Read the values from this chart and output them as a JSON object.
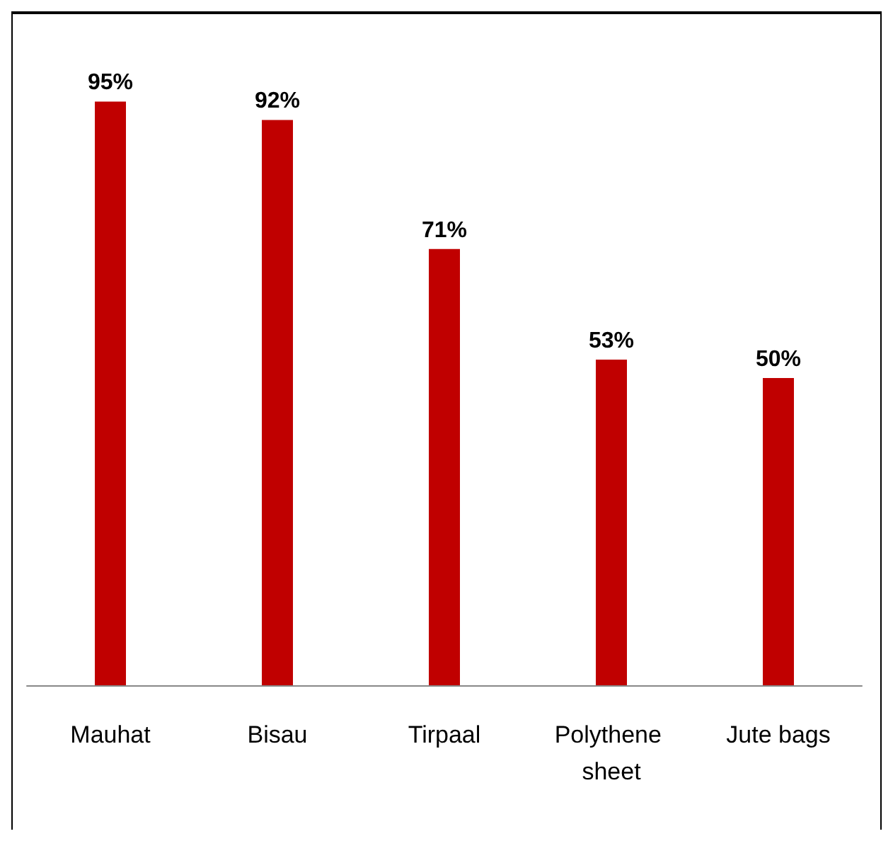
{
  "chart_data": {
    "type": "bar",
    "categories": [
      "Mauhat",
      "Bisau",
      "Tirpaal",
      "Polythene sheet",
      "Jute bags"
    ],
    "values": [
      95,
      92,
      71,
      53,
      50
    ],
    "value_labels": [
      "95%",
      "92%",
      "71%",
      "53%",
      "50%"
    ],
    "color": "#c00000"
  }
}
